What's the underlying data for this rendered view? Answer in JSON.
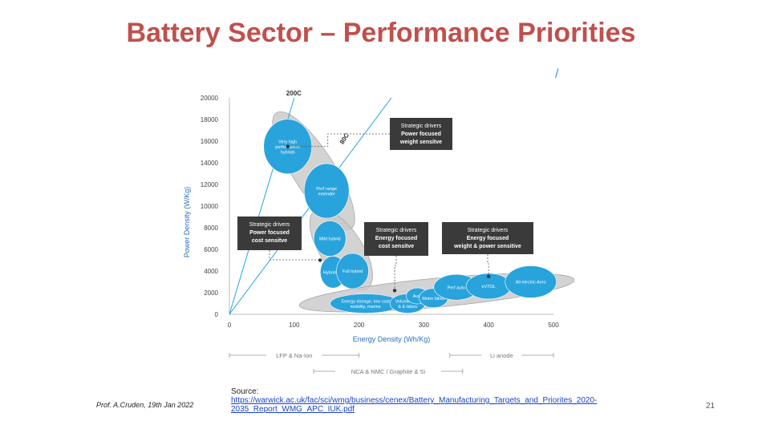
{
  "slide": {
    "title": "Battery Sector – Performance Priorities",
    "author": "Prof. A.Cruden, 19th Jan 2022",
    "source_label": "Source:",
    "source_url": "https://warwick.ac.uk/fac/sci/wmg/business/cenex/Battery_Manufacturing_Targets_and_Priorites_2020-2035_Report_WMG_APC_IUK.pdf",
    "page_number": "21",
    "corner_mark": "/"
  },
  "chart_data": {
    "type": "scatter",
    "xlabel": "Energy Density (Wh/Kg)",
    "ylabel": "Power Density (W/Kg)",
    "xlim": [
      0,
      500
    ],
    "ylim": [
      0,
      20000
    ],
    "xticks": [
      "0",
      "100",
      "200",
      "300",
      "400",
      "500"
    ],
    "yticks": [
      "0",
      "2000",
      "4000",
      "6000",
      "8000",
      "10000",
      "12000",
      "14000",
      "16000",
      "18000",
      "20000"
    ],
    "grid": false,
    "colors": {
      "bubble": "#29a3dc",
      "envelope": "#c8c8c8",
      "box": "#3a3a3a",
      "axis_text": "#2a6fc0",
      "lines": "#29a3dc"
    },
    "rate_lines": [
      {
        "label": "200C",
        "slope_w_per_wh": 200
      },
      {
        "label": "80C",
        "slope_w_per_wh": 80
      }
    ],
    "applications": [
      {
        "label": "Very high performance hybrids",
        "x": 90,
        "y": 15500
      },
      {
        "label": "Perf range extender",
        "x": 150,
        "y": 11400
      },
      {
        "label": "Mild hybrid",
        "x": 155,
        "y": 7000
      },
      {
        "label": "Hybrid rail",
        "x": 160,
        "y": 3900
      },
      {
        "label": "Full hybrid",
        "x": 190,
        "y": 4000
      },
      {
        "label": "Energy storage, low cost mobility, marine",
        "x": 210,
        "y": 1000
      },
      {
        "label": "Volume Auto & E-bikes",
        "x": 275,
        "y": 1000
      },
      {
        "label": "Auto",
        "x": 290,
        "y": 1700
      },
      {
        "label": "Motor bikes",
        "x": 315,
        "y": 1500
      },
      {
        "label": "Perf auto",
        "x": 350,
        "y": 2500
      },
      {
        "label": "eVTOL",
        "x": 400,
        "y": 2600
      },
      {
        "label": "All electric Aero",
        "x": 465,
        "y": 3000
      }
    ],
    "envelopes": [
      {
        "name": "high-power-envelope",
        "from": [
          90,
          17000
        ],
        "to": [
          170,
          9500
        ]
      },
      {
        "name": "hybrid-envelope",
        "from": [
          150,
          8000
        ],
        "to": [
          195,
          4000
        ]
      },
      {
        "name": "energy-envelope",
        "from": [
          140,
          1000
        ],
        "to": [
          500,
          3000
        ]
      }
    ],
    "annotations": [
      {
        "line1": "Strategic drivers",
        "line2": "Power focused",
        "line3": "weight sensitve",
        "point": [
          90,
          15500
        ]
      },
      {
        "line1": "Strategic drivers",
        "line2": "Power focused",
        "line3": "cost sensitve",
        "point": [
          140,
          5000
        ]
      },
      {
        "line1": "Strategic drivers",
        "line2": "Energy focused",
        "line3": "cost sensitve",
        "point": [
          255,
          2200
        ]
      },
      {
        "line1": "Strategic drivers",
        "line2": "Energy focused",
        "line3": "weight & power sensitive",
        "point": [
          400,
          3500
        ]
      }
    ],
    "chemistry_bands": [
      {
        "label": "LFP & Na-Ion",
        "x_from": 0,
        "x_to": 200
      },
      {
        "label": "Li anode",
        "x_from": 340,
        "x_to": 500
      },
      {
        "label": "NCA & NMC / Graphite & Si",
        "x_from": 130,
        "x_to": 360
      }
    ]
  }
}
